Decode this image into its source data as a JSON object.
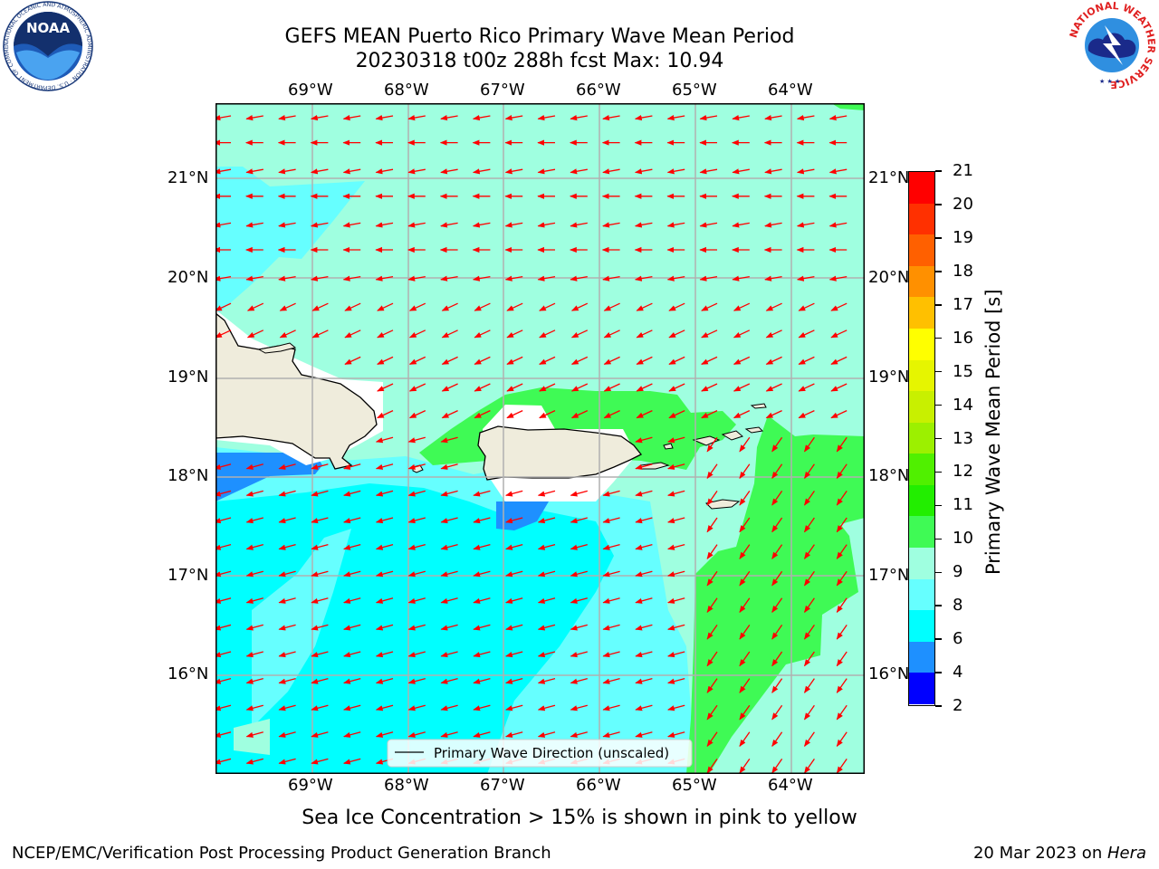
{
  "title": {
    "line1": "GEFS MEAN Puerto Rico Primary Wave Mean Period",
    "line2": "20230318 t00z 288h fcst   Max: 10.94"
  },
  "map": {
    "lon_labels": [
      "69°W",
      "68°W",
      "67°W",
      "66°W",
      "65°W",
      "64°W"
    ],
    "lat_labels": [
      "21°N",
      "20°N",
      "19°N",
      "18°N",
      "17°N",
      "16°N"
    ],
    "lon_values": [
      -69,
      -68,
      -67,
      -66,
      -65,
      -64
    ],
    "lat_values": [
      21,
      20,
      19,
      18,
      17,
      16
    ],
    "extent": {
      "lon_min": -70,
      "lon_max": -63.25,
      "lat_min": 15,
      "lat_max": 21.75
    },
    "legend_label": "Primary Wave Direction (unscaled)",
    "colors": {
      "land": "#efecdc",
      "c4_6": "#1e90ff",
      "c6_8": "#00ffff",
      "c8_9": "#66ffff",
      "c9_10": "#9fffe0",
      "c10_11": "#3ffa55",
      "arrow": "#ff0000"
    }
  },
  "colorbar": {
    "label": "Primary Wave Mean Period [s]",
    "ticks": [
      "21",
      "20",
      "19",
      "18",
      "17",
      "16",
      "15",
      "14",
      "13",
      "12",
      "11",
      "10",
      "9",
      "8",
      "6",
      "4",
      "2"
    ],
    "colors": [
      "#ff0000",
      "#ff3000",
      "#ff6000",
      "#ff9000",
      "#ffc000",
      "#ffff00",
      "#e6f500",
      "#c8f000",
      "#9cf000",
      "#50f000",
      "#22ee00",
      "#3ffa55",
      "#9fffe0",
      "#66ffff",
      "#00ffff",
      "#1e90ff",
      "#0000ff"
    ]
  },
  "note": "Sea Ice Concentration > 15% is shown in pink to yellow",
  "footer": {
    "left": "NCEP/EMC/Verification Post Processing Product Generation Branch",
    "date": "20 Mar 2023 on ",
    "machine": "Hera"
  },
  "logos": {
    "noaa": {
      "text": "NOAA",
      "ring": "NATIONAL OCEANIC AND ATMOSPHERIC ADMINISTRATION · U.S. DEPARTMENT OF COMMERCE"
    },
    "nws": {
      "ring": "NATIONAL WEATHER SERVICE"
    }
  }
}
